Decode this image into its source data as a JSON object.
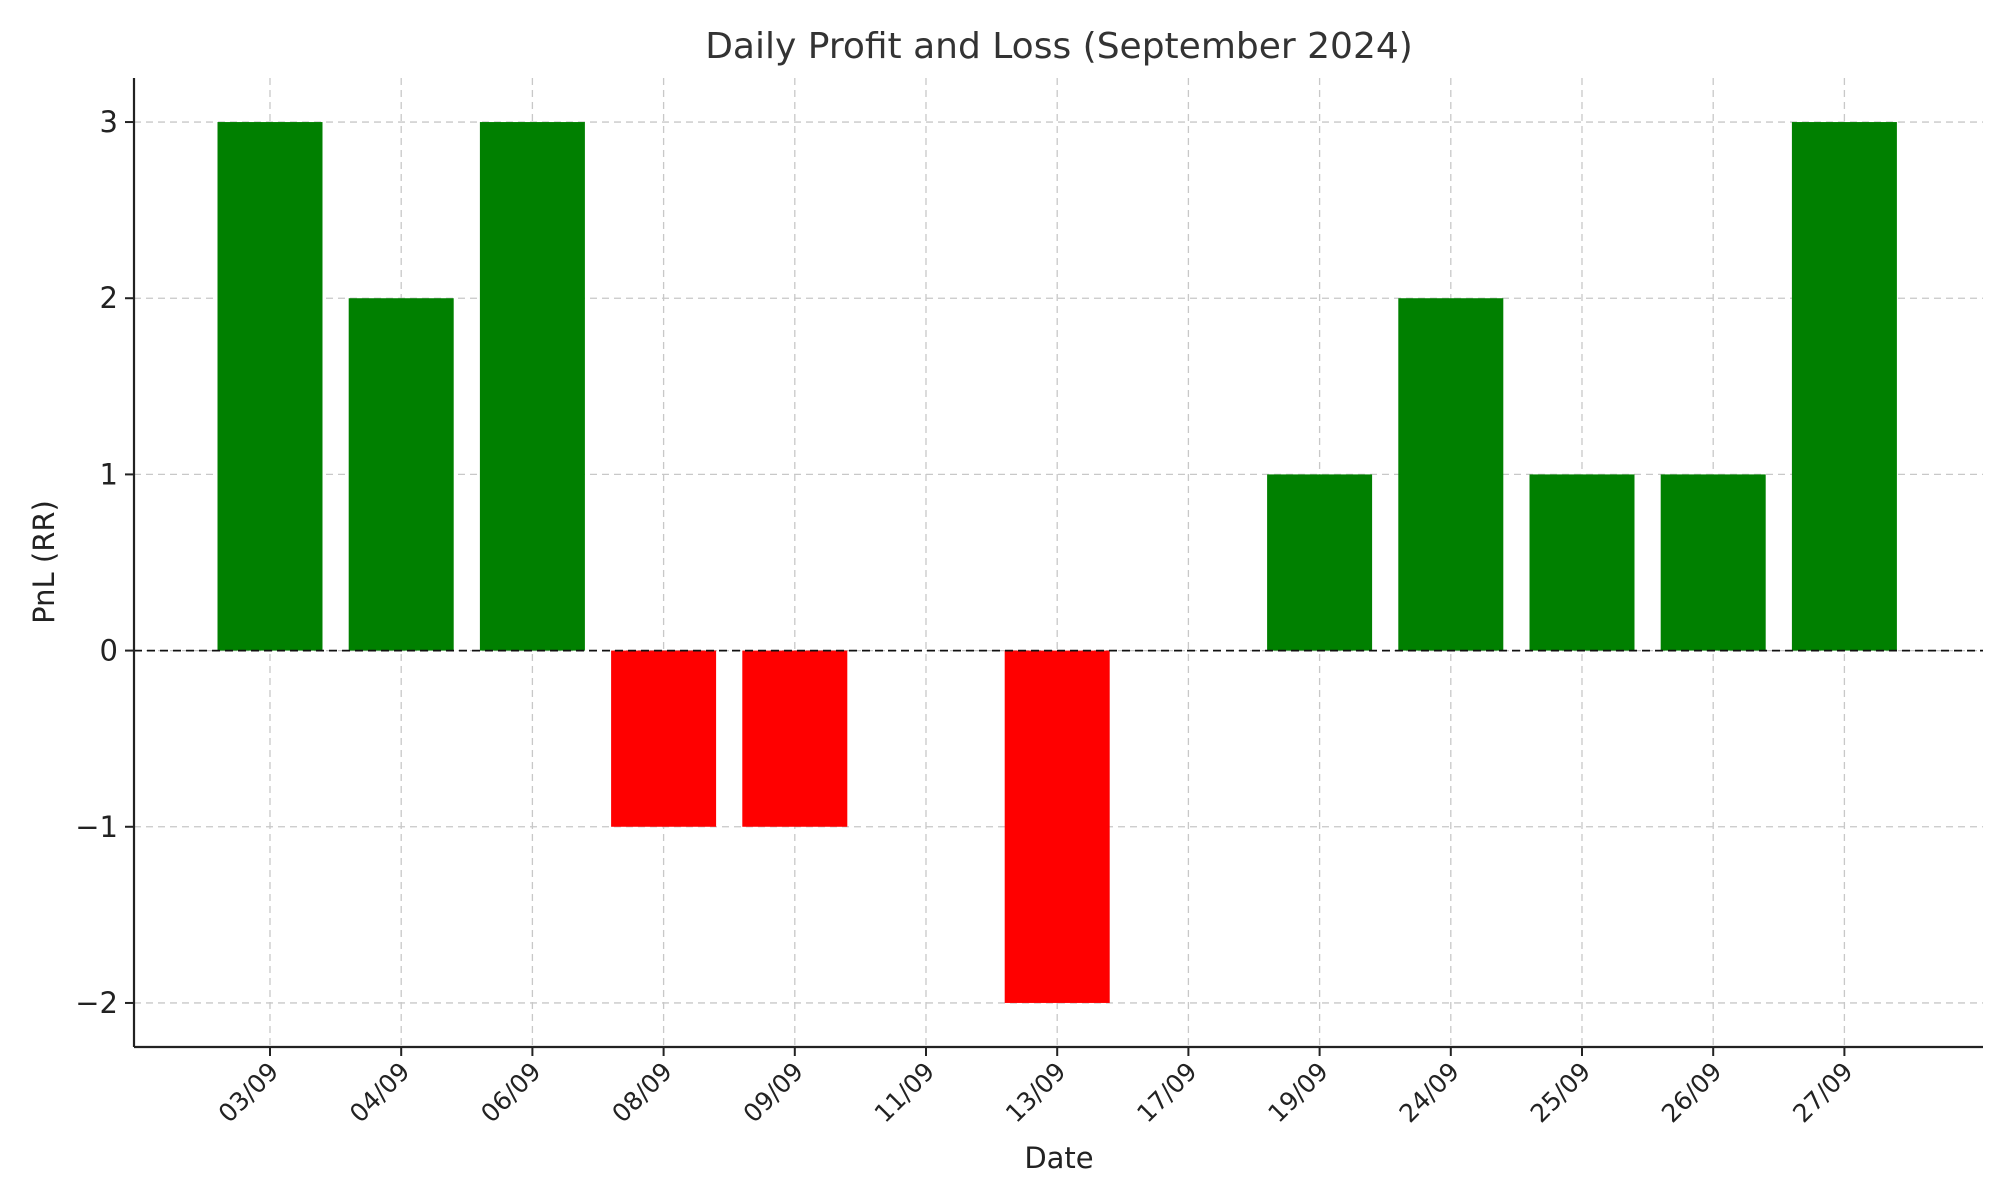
{
  "chart_data": {
    "type": "bar",
    "title": "Daily Profit and Loss (September 2024)",
    "xlabel": "Date",
    "ylabel": "PnL (RR)",
    "categories": [
      "03/09",
      "04/09",
      "06/09",
      "08/09",
      "09/09",
      "11/09",
      "13/09",
      "17/09",
      "19/09",
      "24/09",
      "25/09",
      "26/09",
      "27/09"
    ],
    "values": [
      3,
      2,
      3,
      -1,
      -1,
      0,
      -2,
      0,
      1,
      2,
      1,
      1,
      3
    ],
    "ylim": [
      -2.25,
      3.25
    ],
    "yticks": [
      -2,
      -1,
      0,
      1,
      2,
      3
    ],
    "ytick_labels": [
      "−2",
      "−1",
      "0",
      "1",
      "2",
      "3"
    ],
    "grid": true,
    "zero_line": "dashed black",
    "colors": {
      "positive": "#008000",
      "negative": "#ff0000"
    }
  }
}
